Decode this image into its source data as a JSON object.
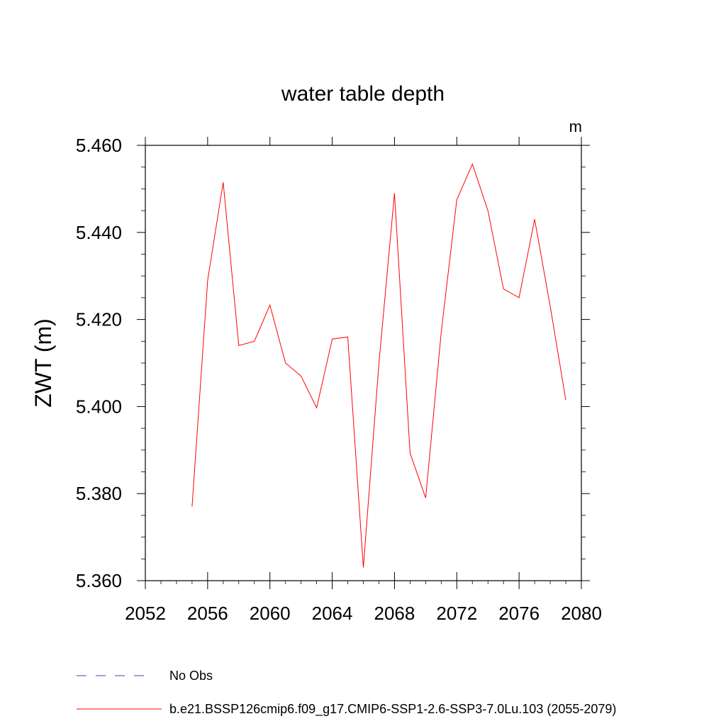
{
  "chart_data": {
    "type": "line",
    "title": "water table depth",
    "ylabel": "ZWT  (m)",
    "units": "m",
    "xlim": [
      2052,
      2080
    ],
    "ylim": [
      5.36,
      5.46
    ],
    "x_ticks": [
      2052,
      2056,
      2060,
      2064,
      2068,
      2072,
      2076,
      2080
    ],
    "x_tick_labels": [
      "2052",
      "2056",
      "2060",
      "2064",
      "2068",
      "2072",
      "2076",
      "2080"
    ],
    "y_ticks": [
      5.36,
      5.38,
      5.4,
      5.42,
      5.44,
      5.46
    ],
    "y_tick_labels": [
      "5.360",
      "5.380",
      "5.400",
      "5.420",
      "5.440",
      "5.460"
    ],
    "grid": false,
    "legend_position": "bottom",
    "series": [
      {
        "name": "b.e21.BSSP126cmip6.f09_g17.CMIP6-SSP1-2.6-SSP3-7.0Lu.103 (2055-2079)",
        "color": "#ff0000",
        "style": "solid",
        "x": [
          2055,
          2056,
          2057,
          2058,
          2059,
          2060,
          2061,
          2062,
          2063,
          2064,
          2065,
          2066,
          2067,
          2068,
          2069,
          2070,
          2071,
          2072,
          2073,
          2074,
          2075,
          2076,
          2077,
          2078,
          2079
        ],
        "values": [
          5.377,
          5.429,
          5.4515,
          5.414,
          5.415,
          5.4233,
          5.41,
          5.407,
          5.3997,
          5.4155,
          5.416,
          5.363,
          5.41,
          5.449,
          5.3893,
          5.379,
          5.417,
          5.4475,
          5.4557,
          5.445,
          5.427,
          5.425,
          5.443,
          5.423,
          5.4015
        ]
      },
      {
        "name": "No Obs",
        "color": "#4b3fa8",
        "style": "dashed",
        "x": [],
        "values": []
      }
    ]
  }
}
